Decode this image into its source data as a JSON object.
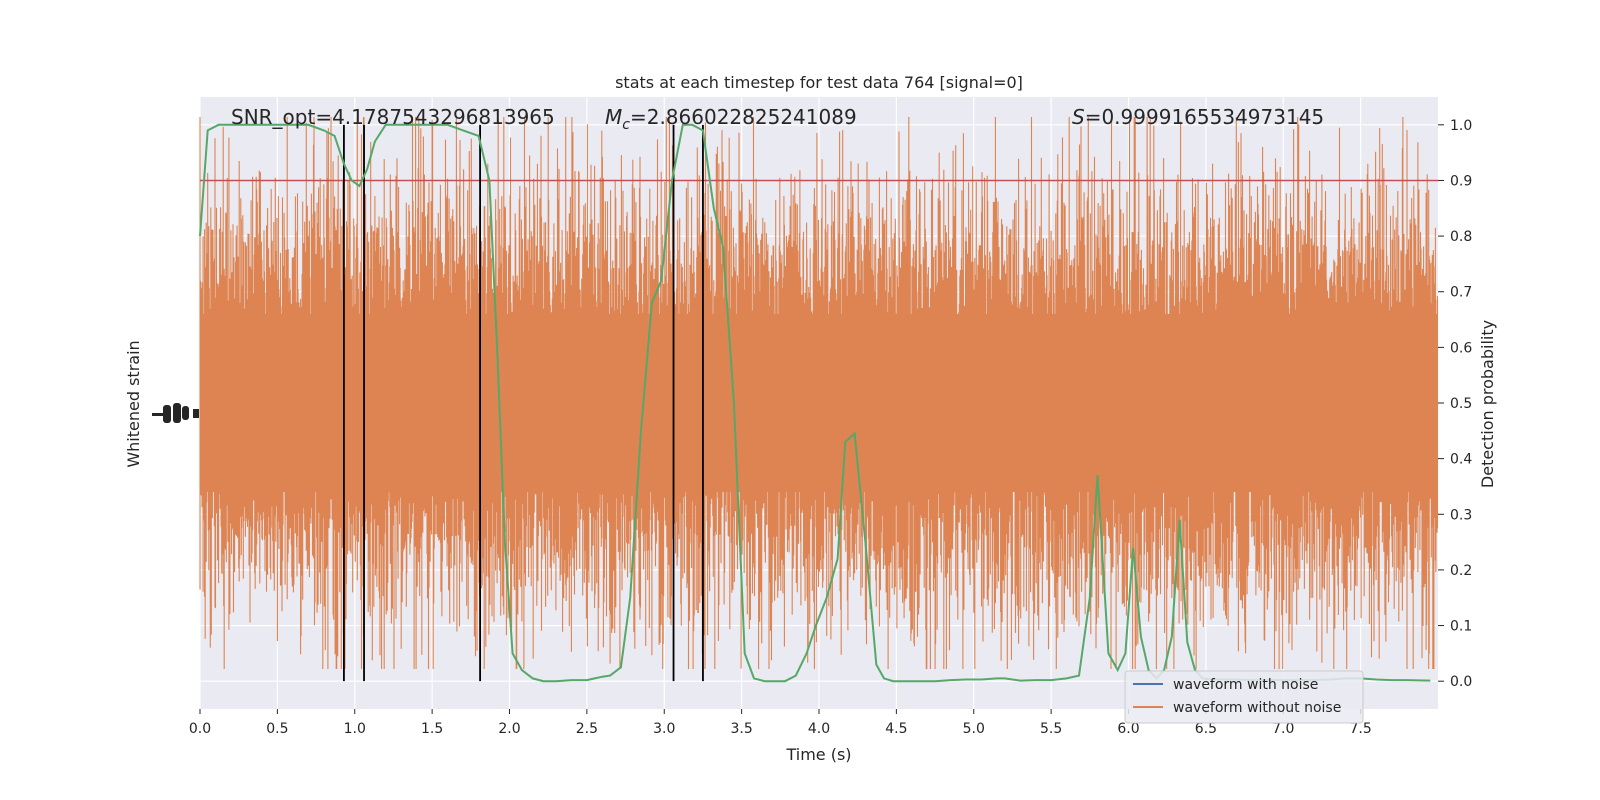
{
  "chart_data": {
    "type": "line",
    "title": "stats at each timestep for test data 764 [signal=0]",
    "xlabel": "Time (s)",
    "ylabel_left": "Whitened strain",
    "ylabel_right": "Detection probability",
    "xlim": [
      0.0,
      8.0
    ],
    "ylim_right": [
      -0.05,
      1.05
    ],
    "x_ticks": [
      0.0,
      0.5,
      1.0,
      1.5,
      2.0,
      2.5,
      3.0,
      3.5,
      4.0,
      4.5,
      5.0,
      5.5,
      6.0,
      6.5,
      7.0,
      7.5
    ],
    "x_tick_labels": [
      "0.0",
      "0.5",
      "1.0",
      "1.5",
      "2.0",
      "2.5",
      "3.0",
      "3.5",
      "4.0",
      "4.5",
      "5.0",
      "5.5",
      "6.0",
      "6.5",
      "7.0",
      "7.5"
    ],
    "y_right_ticks": [
      0.0,
      0.1,
      0.2,
      0.3,
      0.4,
      0.5,
      0.6,
      0.7,
      0.8,
      0.9,
      1.0
    ],
    "y_right_tick_labels": [
      "0.0",
      "0.1",
      "0.2",
      "0.3",
      "0.4",
      "0.5",
      "0.6",
      "0.7",
      "0.8",
      "0.9",
      "1.0"
    ],
    "grid": true,
    "annotations": {
      "snr": "SNR_opt=4.1787543296813965",
      "mc_symbol": "M",
      "mc_sub": "c",
      "mc_value": "=2.866022825241089",
      "s_symbol": "S",
      "s_value": "=0.9999165534973145"
    },
    "threshold": 0.9,
    "vertical_lines_x": [
      0.93,
      1.06,
      1.81,
      3.06,
      3.25
    ],
    "series": [
      {
        "name": "waveform with noise",
        "color": "#4c72b0"
      },
      {
        "name": "waveform without noise",
        "color": "#dd8452"
      }
    ],
    "detection_probability": {
      "color": "#55a868",
      "x": [
        0.0,
        0.05,
        0.12,
        0.2,
        0.3,
        0.4,
        0.5,
        0.6,
        0.7,
        0.8,
        0.87,
        0.93,
        0.98,
        1.03,
        1.08,
        1.13,
        1.2,
        1.3,
        1.4,
        1.5,
        1.6,
        1.7,
        1.8,
        1.87,
        1.92,
        1.97,
        2.02,
        2.08,
        2.15,
        2.22,
        2.3,
        2.4,
        2.5,
        2.55,
        2.6,
        2.65,
        2.72,
        2.78,
        2.85,
        2.92,
        2.98,
        3.05,
        3.12,
        3.18,
        3.25,
        3.32,
        3.38,
        3.45,
        3.52,
        3.58,
        3.65,
        3.72,
        3.78,
        3.85,
        3.92,
        3.98,
        4.05,
        4.12,
        4.17,
        4.23,
        4.3,
        4.37,
        4.42,
        4.48,
        4.55,
        4.65,
        4.75,
        4.85,
        4.95,
        5.05,
        5.15,
        5.2,
        5.3,
        5.4,
        5.5,
        5.6,
        5.68,
        5.75,
        5.8,
        5.87,
        5.93,
        5.98,
        6.03,
        6.08,
        6.13,
        6.18,
        6.23,
        6.28,
        6.33,
        6.38,
        6.43,
        6.48,
        6.53,
        6.6,
        6.7,
        6.8,
        6.9,
        7.0,
        7.1,
        7.2,
        7.3,
        7.4,
        7.5,
        7.6,
        7.7,
        7.8,
        7.95
      ],
      "y": [
        0.8,
        0.99,
        1.0,
        1.0,
        1.0,
        1.0,
        1.0,
        1.0,
        1.0,
        0.99,
        0.98,
        0.93,
        0.9,
        0.89,
        0.92,
        0.97,
        1.0,
        1.0,
        1.0,
        1.0,
        1.0,
        0.99,
        0.98,
        0.9,
        0.6,
        0.25,
        0.05,
        0.02,
        0.005,
        0.0,
        0.0,
        0.002,
        0.002,
        0.005,
        0.008,
        0.01,
        0.025,
        0.15,
        0.45,
        0.68,
        0.72,
        0.9,
        1.0,
        1.0,
        0.99,
        0.85,
        0.78,
        0.5,
        0.05,
        0.005,
        0.0,
        0.0,
        0.0,
        0.01,
        0.05,
        0.1,
        0.15,
        0.22,
        0.43,
        0.445,
        0.25,
        0.03,
        0.005,
        0.0,
        0.0,
        0.0,
        0.0,
        0.002,
        0.003,
        0.003,
        0.005,
        0.005,
        0.001,
        0.002,
        0.002,
        0.005,
        0.01,
        0.15,
        0.37,
        0.05,
        0.02,
        0.05,
        0.24,
        0.08,
        0.02,
        0.005,
        0.02,
        0.08,
        0.29,
        0.07,
        0.02,
        0.005,
        0.003,
        0.003,
        0.003,
        0.002,
        0.002,
        0.002,
        0.002,
        0.002,
        0.003,
        0.005,
        0.005,
        0.003,
        0.002,
        0.002,
        0.001
      ]
    },
    "legend_placement": "lower-right",
    "noise_band_note": null
  }
}
